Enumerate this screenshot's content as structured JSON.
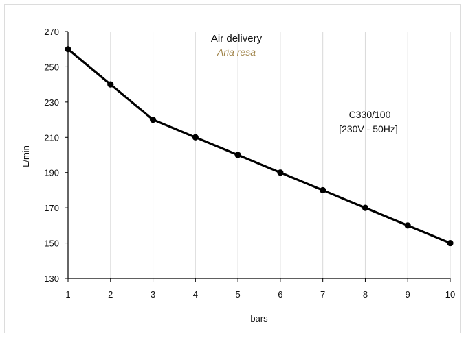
{
  "chart_data": {
    "type": "line",
    "title": "Air delivery",
    "subtitle": "Aria resa",
    "xlabel": "bars",
    "ylabel": "L/min",
    "x": [
      1,
      2,
      3,
      4,
      5,
      6,
      7,
      8,
      9,
      10
    ],
    "series": [
      {
        "values": [
          260,
          240,
          220,
          210,
          200,
          190,
          180,
          170,
          160,
          150
        ]
      }
    ],
    "xlim": [
      1,
      10
    ],
    "ylim": [
      130,
      270
    ],
    "x_ticks": [
      "1",
      "2",
      "3",
      "4",
      "5",
      "6",
      "7",
      "8",
      "9",
      "10"
    ],
    "y_ticks": [
      "270",
      "250",
      "230",
      "210",
      "190",
      "170",
      "150",
      "130"
    ],
    "annotations": [
      "C330/100",
      "[230V - 50Hz]"
    ],
    "grid": "vertical",
    "legend": "none",
    "colors": {
      "line": "#000000",
      "grid": "#d9d9d9",
      "subtitle": "#a0844a"
    }
  }
}
